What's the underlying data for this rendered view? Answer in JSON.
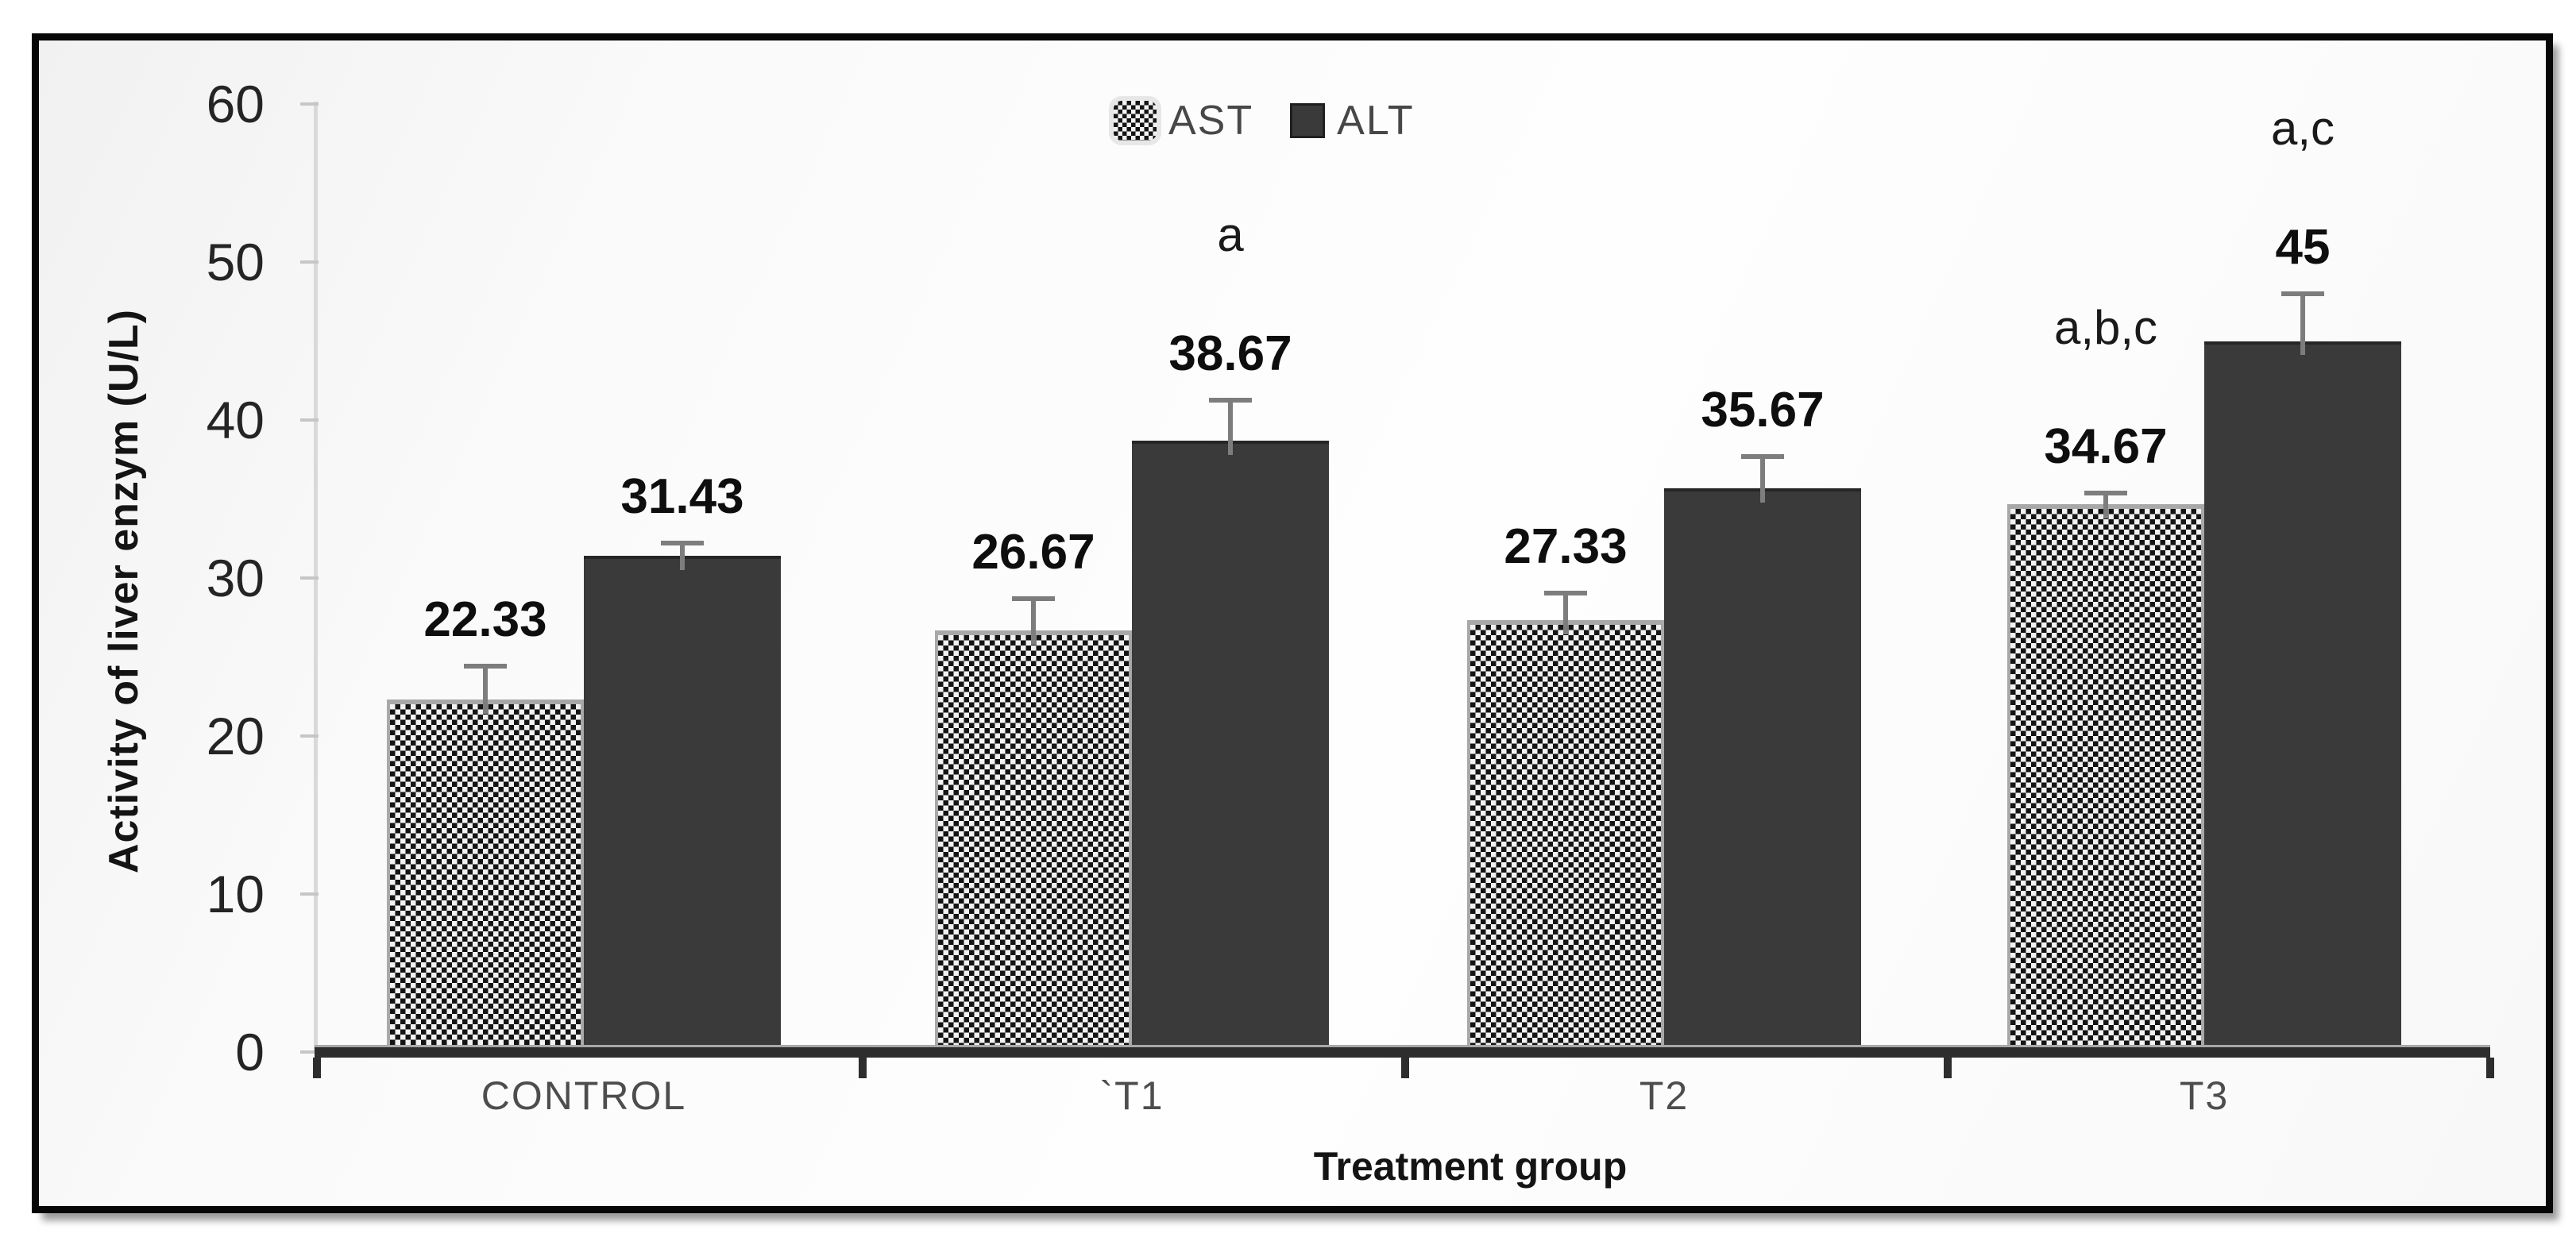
{
  "chart_data": {
    "type": "bar",
    "title": "",
    "categories": [
      "CONTROL",
      "`T1",
      "T2",
      "T3"
    ],
    "series": [
      {
        "name": "AST",
        "pattern": "checker",
        "values": [
          22.33,
          26.67,
          27.33,
          34.67
        ],
        "labels": [
          "22.33",
          "26.67",
          "27.33",
          "34.67"
        ],
        "errors": [
          2.1,
          2.0,
          1.7,
          0.7
        ],
        "annotations": [
          "",
          "",
          "",
          "a,b,c"
        ]
      },
      {
        "name": "ALT",
        "pattern": "solid",
        "values": [
          31.43,
          38.67,
          35.67,
          45
        ],
        "labels": [
          "31.43",
          "38.67",
          "35.67",
          "45"
        ],
        "errors": [
          0.8,
          2.6,
          2.0,
          3.0
        ],
        "annotations": [
          "",
          "a",
          "",
          "a,c"
        ]
      }
    ],
    "xlabel": "Treatment group",
    "ylabel": "Activity of liver enzym (U/L)",
    "ylim": [
      0,
      60
    ],
    "yticks": [
      0,
      10,
      20,
      30,
      40,
      50,
      60
    ],
    "grid": false,
    "legend_position": "top-center",
    "error_bars": "upper"
  },
  "legend": {
    "items": [
      {
        "label": "AST",
        "swatch": "checker"
      },
      {
        "label": "ALT",
        "swatch": "solid"
      }
    ]
  },
  "colors": {
    "alt_bar": "#3a3a3a",
    "ast_pattern_dark": "#141414",
    "ast_pattern_light": "#f2f2f2",
    "ast_border": "#a8a8a8",
    "error_bar": "#7d7d7d",
    "baseline": "#2d2d2d",
    "axis_line": "#d9d9d9",
    "tick_text": "#242424",
    "category_text": "#4d4d4d",
    "value_text": "#0e0e0e",
    "annotation_text": "#1a1a1a",
    "legend_text": "#474747",
    "axis_title_text": "#141414",
    "frame": "#070707"
  }
}
